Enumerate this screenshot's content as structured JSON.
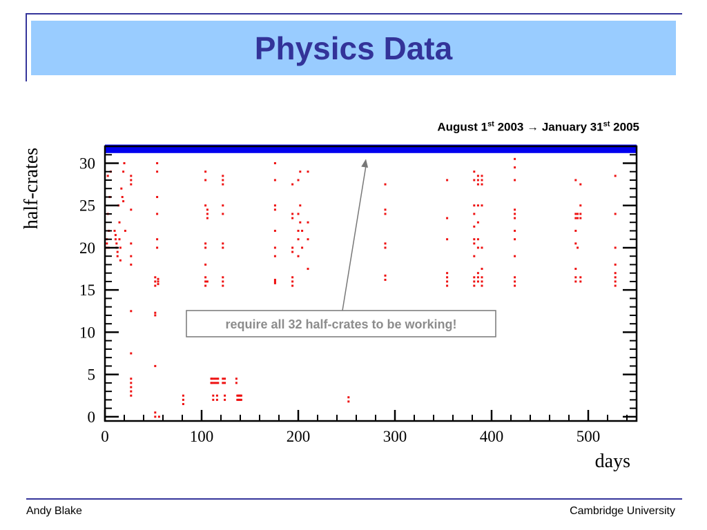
{
  "slide": {
    "title": "Physics Data",
    "date_range": {
      "start_month_day": "August 1",
      "start_suffix": "st",
      "start_year": " 2003 → January 31",
      "end_suffix": "st",
      "end_year": " 2005"
    },
    "footer_left": "Andy Blake",
    "footer_right": "Cambridge University"
  },
  "colors": {
    "banner": "#99ccff",
    "title": "#333399",
    "frame": "#34349a",
    "points": "#ee1111",
    "full_band": "#0000ee",
    "callout_text": "#8c8c8c"
  },
  "chart_data": {
    "type": "scatter",
    "xlabel": "days",
    "ylabel": "half-crates",
    "xlim": [
      0,
      550
    ],
    "ylim": [
      -0.5,
      32
    ],
    "x_ticks": [
      0,
      100,
      200,
      300,
      400,
      500
    ],
    "y_ticks": [
      0,
      5,
      10,
      15,
      20,
      25,
      30
    ],
    "grid": false,
    "full_band": {
      "y_from": 31.2,
      "y_to": 32.2,
      "label": ""
    },
    "annotation": {
      "text": "require all 32 half-crates to be working!",
      "arrow_to": [
        270,
        30.5
      ]
    },
    "points": [
      [
        2,
        21
      ],
      [
        2,
        20.5
      ],
      [
        2,
        20
      ],
      [
        3,
        28.5
      ],
      [
        3,
        24
      ],
      [
        4,
        22
      ],
      [
        4,
        20
      ],
      [
        5,
        26
      ],
      [
        6,
        29
      ],
      [
        10,
        22
      ],
      [
        11,
        21.5
      ],
      [
        11,
        21
      ],
      [
        12,
        20.5
      ],
      [
        12,
        20
      ],
      [
        13,
        19.5
      ],
      [
        13,
        19
      ],
      [
        14,
        25
      ],
      [
        15,
        23
      ],
      [
        15,
        21
      ],
      [
        16,
        20
      ],
      [
        16,
        18.5
      ],
      [
        17,
        27
      ],
      [
        18,
        26
      ],
      [
        19,
        29
      ],
      [
        19,
        25.5
      ],
      [
        20,
        30
      ],
      [
        21,
        22
      ],
      [
        27,
        28.5
      ],
      [
        27,
        28
      ],
      [
        27,
        27.5
      ],
      [
        27,
        24.5
      ],
      [
        27,
        20.5
      ],
      [
        27,
        19
      ],
      [
        27,
        18
      ],
      [
        27,
        12.5
      ],
      [
        27,
        7.5
      ],
      [
        27,
        4.5
      ],
      [
        27,
        4
      ],
      [
        27,
        3.5
      ],
      [
        27,
        3
      ],
      [
        27,
        2.5
      ],
      [
        52,
        16.5
      ],
      [
        52,
        16
      ],
      [
        52,
        15.5
      ],
      [
        52,
        12.3
      ],
      [
        52,
        12
      ],
      [
        52,
        6
      ],
      [
        52,
        0.5
      ],
      [
        52,
        0
      ],
      [
        54,
        30
      ],
      [
        54,
        29
      ],
      [
        54,
        26
      ],
      [
        54,
        24
      ],
      [
        54,
        21
      ],
      [
        54,
        20
      ],
      [
        55,
        16.3
      ],
      [
        55,
        16
      ],
      [
        55,
        15.7
      ],
      [
        56,
        0
      ],
      [
        81,
        2.5
      ],
      [
        81,
        2
      ],
      [
        81,
        1.5
      ],
      [
        104,
        29
      ],
      [
        104,
        28
      ],
      [
        104,
        25
      ],
      [
        104,
        20.5
      ],
      [
        104,
        20
      ],
      [
        104,
        18
      ],
      [
        104,
        16.5
      ],
      [
        104,
        16
      ],
      [
        104,
        15.5
      ],
      [
        106,
        24.5
      ],
      [
        106,
        24
      ],
      [
        106,
        23.5
      ],
      [
        106,
        16
      ],
      [
        110,
        4.5
      ],
      [
        110,
        4
      ],
      [
        111,
        4.5
      ],
      [
        111,
        4
      ],
      [
        112,
        2.5
      ],
      [
        112,
        2
      ],
      [
        113,
        4.5
      ],
      [
        113,
        4
      ],
      [
        115,
        4.5
      ],
      [
        115,
        4
      ],
      [
        116,
        2.5
      ],
      [
        116,
        2
      ],
      [
        117,
        4.5
      ],
      [
        117,
        4
      ],
      [
        122,
        28.5
      ],
      [
        122,
        28
      ],
      [
        122,
        27.5
      ],
      [
        122,
        25
      ],
      [
        122,
        24
      ],
      [
        122,
        20.5
      ],
      [
        122,
        20
      ],
      [
        122,
        16.5
      ],
      [
        122,
        16
      ],
      [
        122,
        15.5
      ],
      [
        122,
        4.5
      ],
      [
        122,
        4
      ],
      [
        124,
        4.5
      ],
      [
        124,
        4
      ],
      [
        124,
        2.5
      ],
      [
        124,
        2
      ],
      [
        136,
        4.5
      ],
      [
        136,
        4
      ],
      [
        137,
        2.5
      ],
      [
        137,
        2
      ],
      [
        138,
        2.5
      ],
      [
        138,
        2
      ],
      [
        139,
        2.5
      ],
      [
        139,
        2
      ],
      [
        140,
        2.5
      ],
      [
        140,
        2
      ],
      [
        141,
        2.5
      ],
      [
        141,
        2
      ],
      [
        176,
        31.5
      ],
      [
        176,
        30
      ],
      [
        176,
        28
      ],
      [
        176,
        25
      ],
      [
        176,
        24.5
      ],
      [
        176,
        22
      ],
      [
        176,
        20
      ],
      [
        176,
        19
      ],
      [
        176,
        16.2
      ],
      [
        176,
        16
      ],
      [
        176,
        15.8
      ],
      [
        194,
        27.5
      ],
      [
        194,
        24
      ],
      [
        194,
        23.5
      ],
      [
        194,
        20
      ],
      [
        194,
        19.5
      ],
      [
        194,
        16.5
      ],
      [
        194,
        16
      ],
      [
        194,
        15.5
      ],
      [
        200,
        28
      ],
      [
        200,
        24
      ],
      [
        200,
        22
      ],
      [
        200,
        21
      ],
      [
        200,
        19
      ],
      [
        202,
        29
      ],
      [
        202,
        25
      ],
      [
        202,
        23
      ],
      [
        204,
        22
      ],
      [
        204,
        20
      ],
      [
        210,
        23
      ],
      [
        210,
        21
      ],
      [
        210,
        29
      ],
      [
        210,
        17.5
      ],
      [
        252,
        2.3
      ],
      [
        252,
        1.8
      ],
      [
        290,
        27.5
      ],
      [
        290,
        24.5
      ],
      [
        290,
        24
      ],
      [
        290,
        20.5
      ],
      [
        290,
        20
      ],
      [
        290,
        16.7
      ],
      [
        290,
        16.2
      ],
      [
        354,
        28
      ],
      [
        354,
        23.5
      ],
      [
        354,
        21
      ],
      [
        354,
        17
      ],
      [
        354,
        16.5
      ],
      [
        354,
        16
      ],
      [
        354,
        15.5
      ],
      [
        382,
        29
      ],
      [
        382,
        28
      ],
      [
        382,
        25
      ],
      [
        382,
        24
      ],
      [
        382,
        22.5
      ],
      [
        382,
        21
      ],
      [
        382,
        20.5
      ],
      [
        382,
        19
      ],
      [
        382,
        16.5
      ],
      [
        382,
        16
      ],
      [
        382,
        15.5
      ],
      [
        386,
        28.5
      ],
      [
        386,
        28
      ],
      [
        386,
        27.5
      ],
      [
        386,
        25
      ],
      [
        386,
        23
      ],
      [
        386,
        21
      ],
      [
        386,
        20
      ],
      [
        386,
        17
      ],
      [
        386,
        16.5
      ],
      [
        386,
        16
      ],
      [
        390,
        31.5
      ],
      [
        390,
        28.5
      ],
      [
        390,
        28
      ],
      [
        390,
        27.5
      ],
      [
        390,
        25
      ],
      [
        390,
        20
      ],
      [
        390,
        17.5
      ],
      [
        390,
        16.5
      ],
      [
        390,
        16
      ],
      [
        390,
        15.5
      ],
      [
        424,
        30.5
      ],
      [
        424,
        29.5
      ],
      [
        424,
        28
      ],
      [
        424,
        24.5
      ],
      [
        424,
        24
      ],
      [
        424,
        23.5
      ],
      [
        424,
        22
      ],
      [
        424,
        21
      ],
      [
        424,
        19
      ],
      [
        424,
        16.5
      ],
      [
        424,
        16
      ],
      [
        424,
        15.5
      ],
      [
        487,
        28
      ],
      [
        487,
        24
      ],
      [
        487,
        23.5
      ],
      [
        487,
        22
      ],
      [
        487,
        20.5
      ],
      [
        487,
        17.5
      ],
      [
        487,
        16.5
      ],
      [
        487,
        16
      ],
      [
        489,
        24
      ],
      [
        489,
        23.5
      ],
      [
        489,
        20
      ],
      [
        492,
        27.5
      ],
      [
        492,
        25
      ],
      [
        492,
        24
      ],
      [
        492,
        23.5
      ],
      [
        492,
        16.5
      ],
      [
        492,
        16
      ],
      [
        528,
        28.5
      ],
      [
        528,
        24
      ],
      [
        528,
        20
      ],
      [
        528,
        18
      ],
      [
        528,
        17
      ],
      [
        528,
        16.5
      ],
      [
        528,
        16
      ],
      [
        528,
        15.5
      ]
    ]
  }
}
